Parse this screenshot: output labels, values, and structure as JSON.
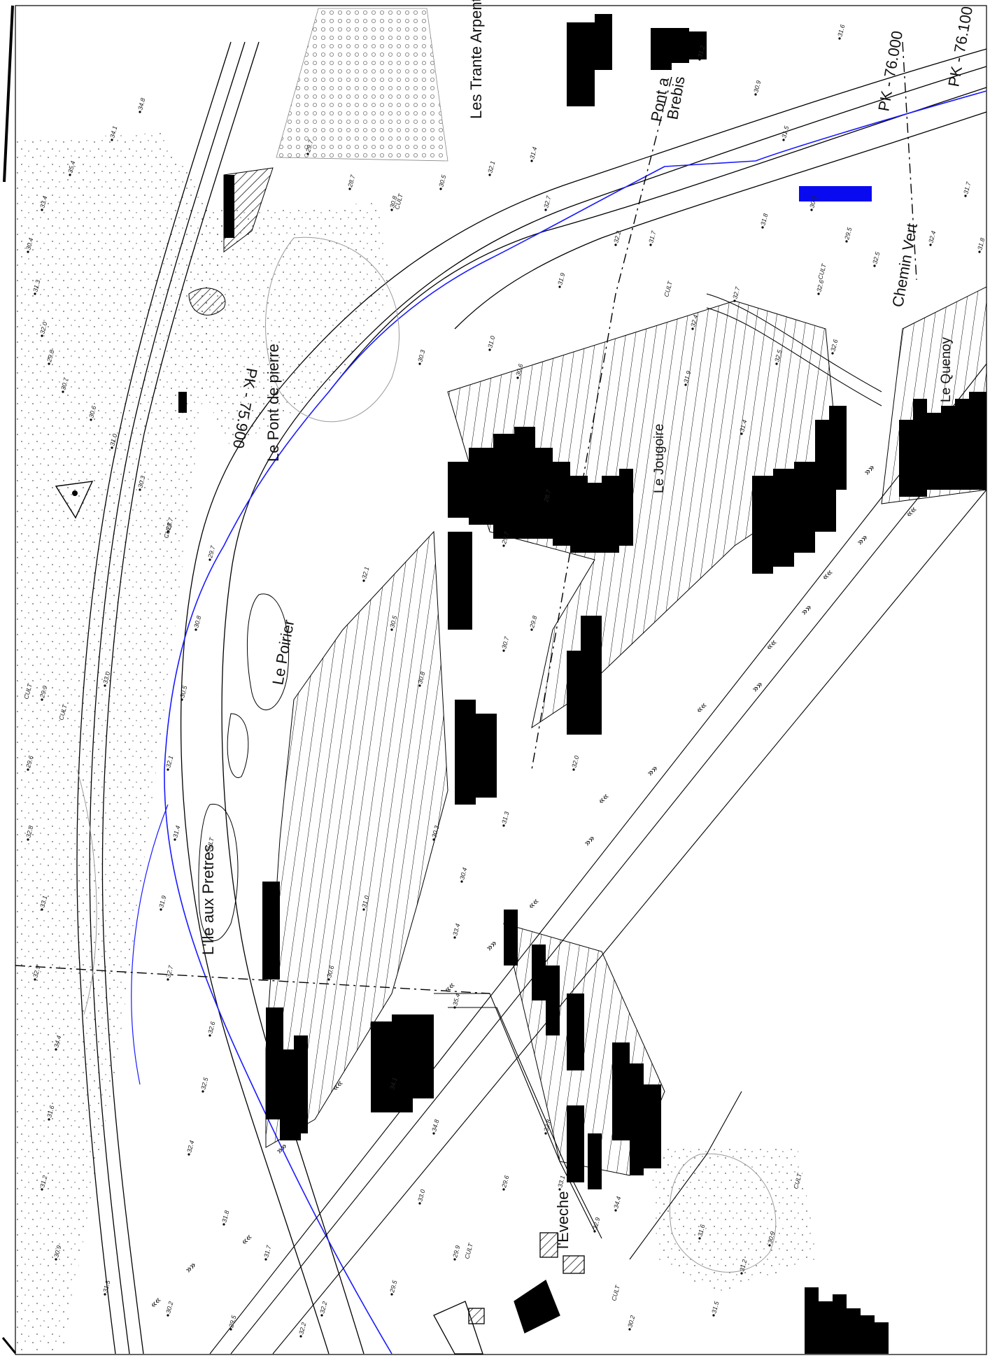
{
  "map": {
    "place_names": {
      "trante_arpents": "Les Trante Arpents",
      "pont_brebis_1": "Pont a",
      "pont_brebis_2": "Brebis",
      "pont_de_pierre": "Le Pont de pierre",
      "jougoire": "Le Jougoire",
      "poirier": "Le Poirier",
      "ile_aux_pretres": "L'Ile aux Pretres",
      "quenoy": "Le Quenoy",
      "chemin_vert": "Chemin Vert",
      "eveche": "l'Eveche"
    },
    "kilometer_markers": {
      "pk_76000": "PK - 76.000",
      "pk_76100": "PK - 76.100",
      "pk_75900": "PK - 75.900"
    },
    "elevation_points": [
      "31.6",
      "31.2",
      "30.9",
      "31.5",
      "30.2",
      "29.5",
      "32.2",
      "31.7",
      "31.8",
      "32.4",
      "32.5",
      "32.6",
      "32.7",
      "31.9",
      "31.4",
      "32.1",
      "30.5",
      "30.8",
      "29.7",
      "28.7",
      "30.3",
      "31.0",
      "30.6",
      "30.7",
      "29.8",
      "32.0",
      "31.3",
      "30.4",
      "33.4",
      "35.4",
      "34.1",
      "34.8",
      "33.0",
      "29.9",
      "29.6",
      "32.8",
      "33.1",
      "32.9",
      "34.4"
    ],
    "cult_label": "CULT",
    "colors": {
      "ink": "#000000",
      "river_line": "#1a1aff",
      "highlight_rect": "#0a0af0",
      "gray_contour": "#9a9a9a"
    }
  }
}
